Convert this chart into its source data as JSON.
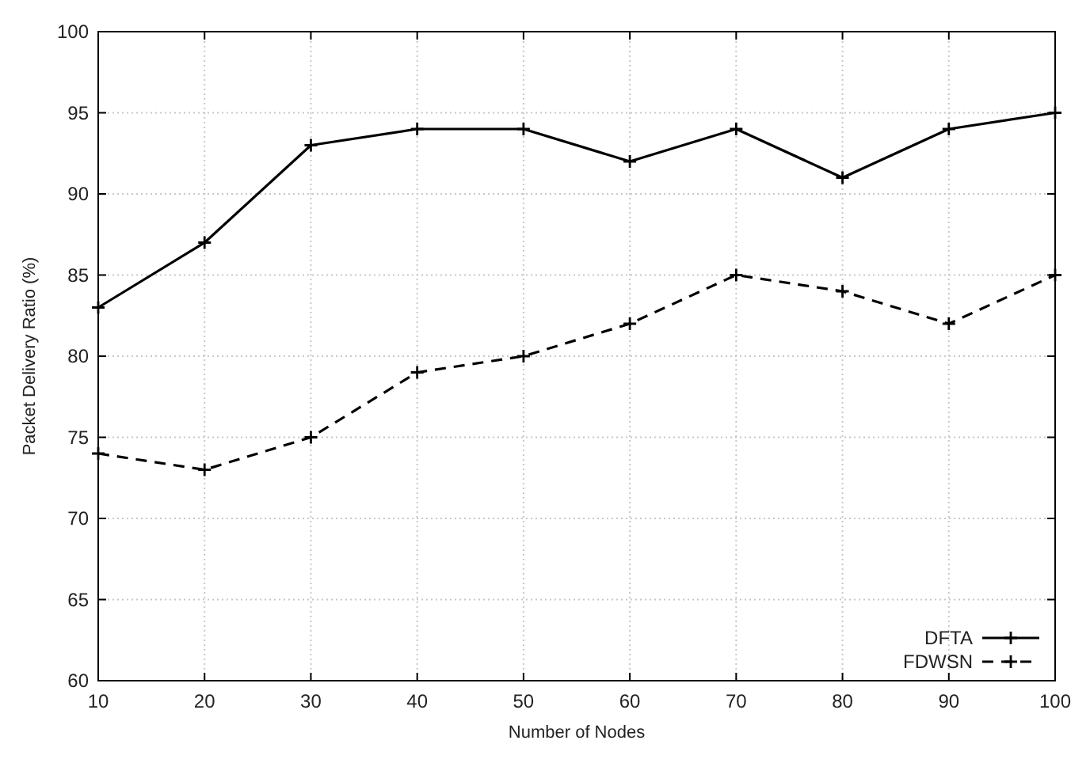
{
  "chart_data": {
    "type": "line",
    "xlabel": "Number of Nodes",
    "ylabel": "Packet Delivery Ratio (%)",
    "x": [
      10,
      20,
      30,
      40,
      50,
      60,
      70,
      80,
      90,
      100
    ],
    "series": [
      {
        "name": "DFTA",
        "color": "#000000",
        "line_style": "solid",
        "values": [
          83,
          87,
          93,
          94,
          94,
          92,
          94,
          91,
          94,
          95
        ]
      },
      {
        "name": "FDWSN",
        "color": "#000000",
        "line_style": "dashed",
        "values": [
          74,
          73,
          75,
          79,
          80,
          82,
          85,
          84,
          82,
          85
        ]
      }
    ],
    "xlim": [
      10,
      100
    ],
    "xticks": [
      10,
      20,
      30,
      40,
      50,
      60,
      70,
      80,
      90,
      100
    ],
    "ylim": [
      60,
      100
    ],
    "yticks": [
      60,
      65,
      70,
      75,
      80,
      85,
      90,
      95,
      100
    ],
    "grid": true,
    "legend": "bottom right",
    "marker": "cross"
  }
}
